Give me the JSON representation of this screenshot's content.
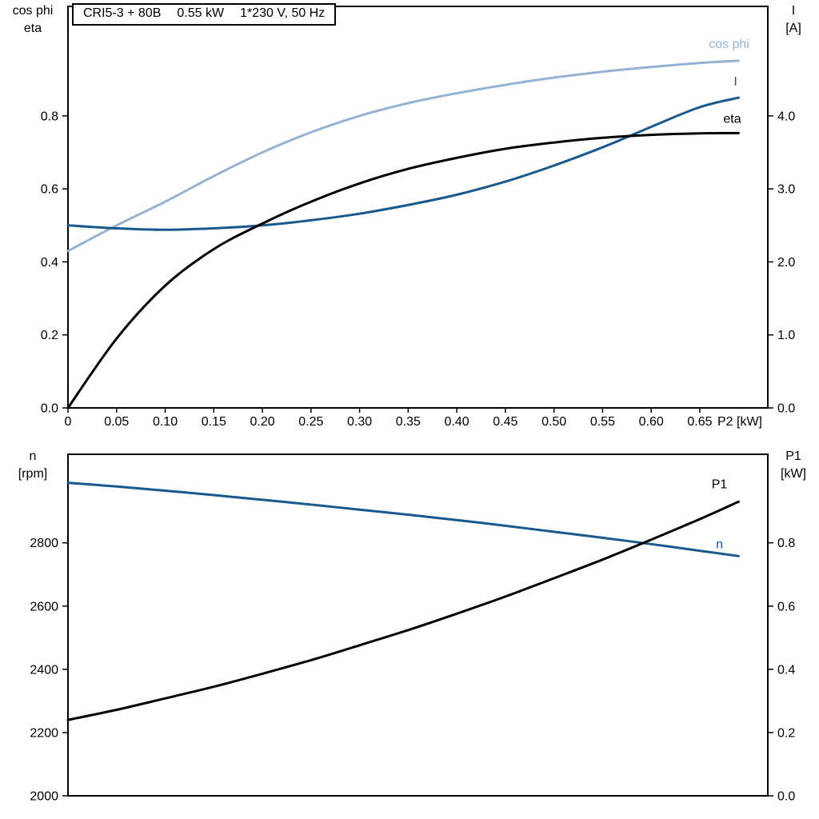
{
  "title_box": {
    "model": "CRI5-3 + 80B",
    "power": "0.55 kW",
    "voltage": "1*230 V, 50 Hz"
  },
  "chart_data": [
    {
      "type": "line",
      "title": "CRI5-3 + 80B  0.55 kW  1*230 V, 50 Hz",
      "x_axis": {
        "range": [
          0,
          0.72
        ],
        "end_label": "P2 [kW]",
        "ticks": [
          0,
          0.05,
          0.1,
          0.15,
          0.2,
          0.25,
          0.3,
          0.35,
          0.4,
          0.45,
          0.5,
          0.55,
          0.6,
          0.65
        ],
        "tick_labels": [
          "0",
          "0.05",
          "0.10",
          "0.15",
          "0.20",
          "0.25",
          "0.30",
          "0.35",
          "0.40",
          "0.45",
          "0.50",
          "0.55",
          "0.60",
          "0.65"
        ]
      },
      "y_left": {
        "label_lines": [
          "cos phi",
          "eta"
        ],
        "range": [
          0,
          1.1
        ],
        "ticks": [
          0,
          0.2,
          0.4,
          0.6,
          0.8
        ],
        "tick_labels": [
          "0.0",
          "0.2",
          "0.4",
          "0.6",
          "0.8"
        ]
      },
      "y_right": {
        "label_lines": [
          "I",
          "[A]"
        ],
        "range": [
          0,
          5.5
        ],
        "ticks": [
          0,
          1,
          2,
          3,
          4
        ],
        "tick_labels": [
          "0.0",
          "1.0",
          "2.0",
          "3.0",
          "4.0"
        ]
      },
      "x": [
        0,
        0.05,
        0.1,
        0.15,
        0.2,
        0.25,
        0.3,
        0.35,
        0.4,
        0.45,
        0.5,
        0.55,
        0.6,
        0.65,
        0.69
      ],
      "series": [
        {
          "name": "cos phi",
          "axis": "left",
          "color": "#94b3d4",
          "label": "cos phi",
          "label_dx": -12,
          "label_dy": -16,
          "values": [
            0.43,
            0.5,
            0.565,
            0.635,
            0.7,
            0.755,
            0.8,
            0.835,
            0.862,
            0.885,
            0.905,
            0.921,
            0.934,
            0.945,
            0.951
          ]
        },
        {
          "name": "I",
          "axis": "right",
          "color": "#17588f",
          "label": "I",
          "label_dx": -4,
          "label_dy": -15,
          "values": [
            2.5,
            2.46,
            2.44,
            2.46,
            2.5,
            2.57,
            2.66,
            2.78,
            2.92,
            3.1,
            3.32,
            3.57,
            3.85,
            4.12,
            4.25
          ]
        },
        {
          "name": "eta",
          "axis": "left",
          "color": "#000000",
          "label": "eta",
          "label_dx": -8,
          "label_dy": -13,
          "values": [
            0.0,
            0.19,
            0.335,
            0.435,
            0.505,
            0.565,
            0.615,
            0.655,
            0.685,
            0.71,
            0.727,
            0.74,
            0.748,
            0.752,
            0.753
          ]
        }
      ]
    },
    {
      "type": "line",
      "x_axis": {
        "range": [
          0,
          0.72
        ],
        "end_label": "",
        "ticks": [],
        "tick_labels": []
      },
      "y_left": {
        "label_lines": [
          "n",
          "[rpm]"
        ],
        "range": [
          2000,
          3080
        ],
        "ticks": [
          2000,
          2200,
          2400,
          2600,
          2800
        ],
        "tick_labels": [
          "2000",
          "2200",
          "2400",
          "2600",
          "2800"
        ]
      },
      "y_right": {
        "label_lines": [
          "P1",
          "[kW]"
        ],
        "range": [
          0,
          1.08
        ],
        "ticks": [
          0,
          0.2,
          0.4,
          0.6,
          0.8
        ],
        "tick_labels": [
          "0.0",
          "0.2",
          "0.4",
          "0.6",
          "0.8"
        ]
      },
      "x": [
        0,
        0.05,
        0.1,
        0.15,
        0.2,
        0.25,
        0.3,
        0.35,
        0.4,
        0.45,
        0.5,
        0.55,
        0.6,
        0.65,
        0.69
      ],
      "series": [
        {
          "name": "n",
          "axis": "left",
          "color": "#17588f",
          "label": "n",
          "label_dx": -24,
          "label_dy": -10,
          "values": [
            2990,
            2978,
            2965,
            2951,
            2936,
            2921,
            2905,
            2889,
            2872,
            2854,
            2835,
            2816,
            2796,
            2775,
            2758
          ]
        },
        {
          "name": "P1",
          "axis": "right",
          "color": "#000000",
          "label": "P1",
          "label_dx": -24,
          "label_dy": -17,
          "values": [
            0.24,
            0.272,
            0.308,
            0.345,
            0.386,
            0.429,
            0.476,
            0.524,
            0.576,
            0.63,
            0.688,
            0.747,
            0.81,
            0.875,
            0.93
          ]
        }
      ]
    }
  ]
}
